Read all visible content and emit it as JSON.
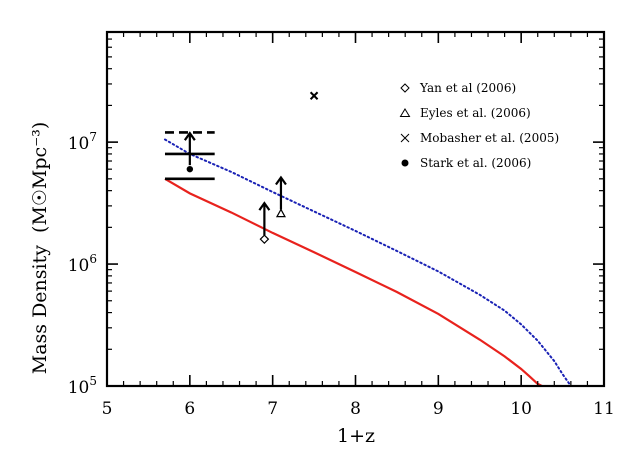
{
  "chart_data": {
    "type": "line",
    "xlabel": "1+z",
    "ylabel": "Mass Density",
    "ylabel_unit_html": "(M☉Mpc⁻³)",
    "xlim": [
      5,
      11
    ],
    "ylim": [
      100000,
      80000000
    ],
    "yscale": "log",
    "grid": false,
    "legend_placement": "top-right",
    "x_ticks": [
      5,
      6,
      7,
      8,
      9,
      10,
      11
    ],
    "x_tick_labels": [
      "5",
      "6",
      "7",
      "8",
      "9",
      "10",
      "11"
    ],
    "y_ticks": [
      100000,
      1000000,
      10000000
    ],
    "y_tick_labels": [
      {
        "base": "10",
        "exp": "5"
      },
      {
        "base": "10",
        "exp": "6"
      },
      {
        "base": "10",
        "exp": "7"
      }
    ],
    "series": [
      {
        "style": "solid",
        "color": "#e8221d",
        "x": [
          5.7,
          6.0,
          6.5,
          7.0,
          7.5,
          8.0,
          8.5,
          9.0,
          9.5,
          9.8,
          10.0,
          10.1,
          10.2,
          10.25
        ],
        "y": [
          5000000,
          3800000,
          2650000,
          1800000,
          1250000,
          860000,
          590000,
          390000,
          240000,
          175000,
          138000,
          120000,
          104000,
          100000
        ]
      },
      {
        "style": "dotted",
        "color": "#1a22b5",
        "x": [
          5.7,
          6.0,
          6.5,
          7.0,
          7.5,
          8.0,
          8.5,
          9.0,
          9.5,
          9.8,
          10.0,
          10.2,
          10.4,
          10.5,
          10.6
        ],
        "y": [
          10500000,
          8000000,
          5700000,
          3900000,
          2700000,
          1870000,
          1280000,
          870000,
          560000,
          415000,
          320000,
          235000,
          160000,
          125000,
          100000
        ]
      }
    ],
    "points": [
      {
        "label": "Yan et al (2006)",
        "marker": "diamond",
        "x": 6.9,
        "y": 1600000,
        "lower_limit": true
      },
      {
        "label": "Eyles et al. (2006)",
        "marker": "triangle",
        "x": 7.1,
        "y": 2600000,
        "lower_limit": true
      },
      {
        "label": "Mobasher et al. (2005)",
        "marker": "cross",
        "x": 7.5,
        "y": 24000000,
        "lower_limit": false
      },
      {
        "label": "Stark et al. (2006)",
        "marker": "dot",
        "x": 6.0,
        "y": 6000000,
        "lower_limit": true
      }
    ],
    "stark_bars": {
      "x": 6.0,
      "x_half_width": 0.3,
      "solid_levels": [
        5000000,
        8000000
      ],
      "dashed_level": 12000000
    },
    "legend": [
      {
        "marker": "diamond",
        "label": "Yan et al (2006)"
      },
      {
        "marker": "triangle",
        "label": "Eyles et al. (2006)"
      },
      {
        "marker": "cross",
        "label": "Mobasher et al. (2005)"
      },
      {
        "marker": "dot",
        "label": "Stark et al. (2006)"
      }
    ]
  }
}
